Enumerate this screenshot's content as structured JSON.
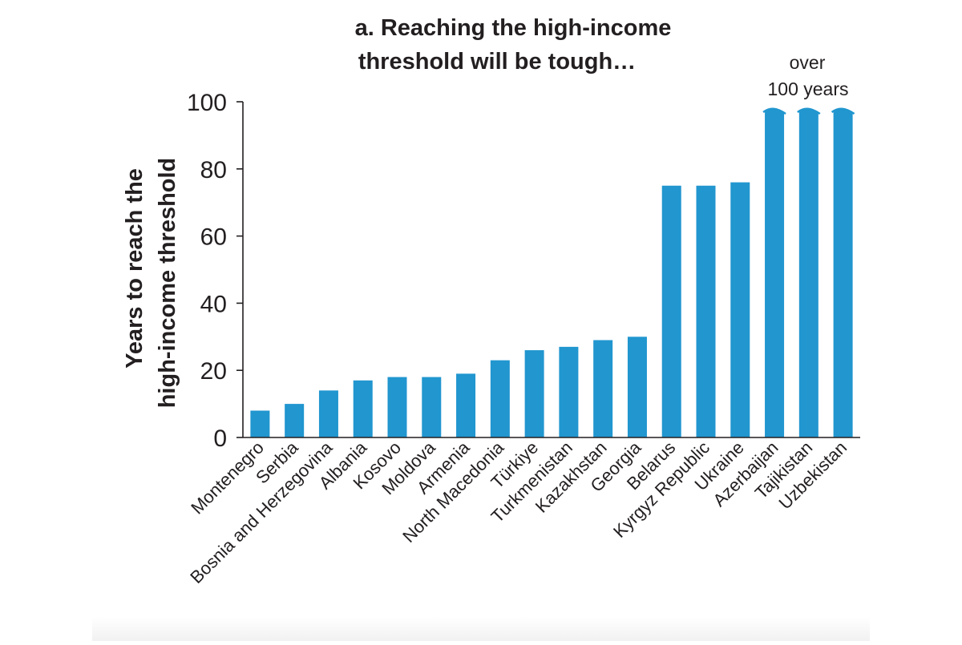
{
  "chart_data": {
    "type": "bar",
    "title_lines": [
      "a. Reaching the high-income",
      "threshold will be tough…"
    ],
    "ylabel_lines": [
      "Years to reach the",
      "high-income threshold"
    ],
    "xlabel": "",
    "ylim": [
      0,
      100
    ],
    "yticks": [
      "0",
      "20",
      "40",
      "60",
      "80",
      "100"
    ],
    "bar_color": "#2196cf",
    "grid": false,
    "categories": [
      "Montenegro",
      "Serbia",
      "Bosnia and Herzegovina",
      "Albania",
      "Kosovo",
      "Moldova",
      "Armenia",
      "North Macedonia",
      "Türkiye",
      "Turkmenistan",
      "Kazakhstan",
      "Georgia",
      "Belarus",
      "Kyrgyz Republic",
      "Ukraine",
      "Azerbaijan",
      "Tajikistan",
      "Uzbekistan"
    ],
    "values": [
      8,
      10,
      14,
      17,
      18,
      18,
      19,
      23,
      26,
      27,
      29,
      30,
      75,
      75,
      76,
      100,
      100,
      100
    ],
    "truncated_over_axis": [
      "Azerbaijan",
      "Tajikistan",
      "Uzbekistan"
    ],
    "annotation_lines": [
      "over",
      "100 years"
    ]
  }
}
